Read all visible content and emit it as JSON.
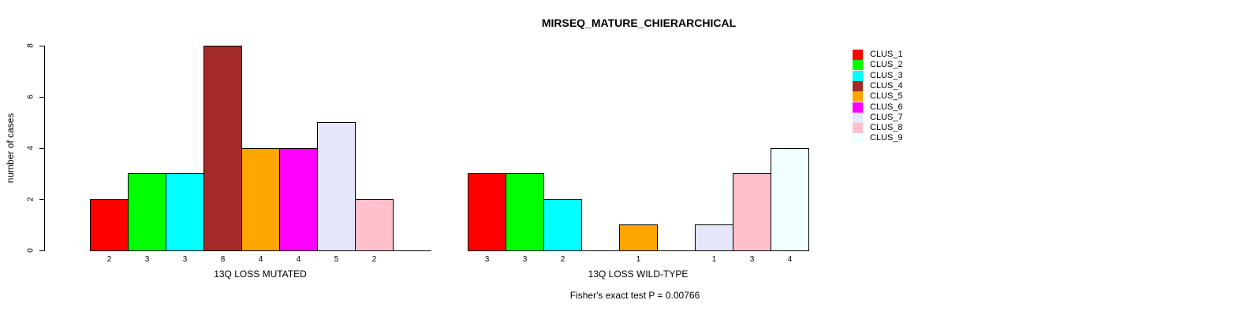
{
  "title": "MIRSEQ_MATURE_CHIERARCHICAL",
  "ylabel": "number of cases",
  "footer": "Fisher's exact test P = 0.00766",
  "legend": {
    "position": "right",
    "entries": [
      {
        "label": "CLUS_1",
        "color": "#FF0000"
      },
      {
        "label": "CLUS_2",
        "color": "#00FF00"
      },
      {
        "label": "CLUS_3",
        "color": "#00FFFF"
      },
      {
        "label": "CLUS_4",
        "color": "#A52A2A"
      },
      {
        "label": "CLUS_5",
        "color": "#FFA500"
      },
      {
        "label": "CLUS_6",
        "color": "#FF00FF"
      },
      {
        "label": "CLUS_7",
        "color": "#E6E6FA"
      },
      {
        "label": "CLUS_8",
        "color": "#FFC0CB"
      },
      {
        "label": "CLUS_9",
        "color": "#F0FFFF"
      }
    ]
  },
  "chart_data": [
    {
      "type": "bar",
      "title": "MIRSEQ_MATURE_CHIERARCHICAL",
      "xlabel": "13Q LOSS MUTATED",
      "ylabel": "number of cases",
      "categories": [
        "CLUS_1",
        "CLUS_2",
        "CLUS_3",
        "CLUS_4",
        "CLUS_5",
        "CLUS_6",
        "CLUS_7",
        "CLUS_8",
        "CLUS_9"
      ],
      "values": [
        2,
        3,
        3,
        8,
        4,
        4,
        5,
        2,
        0
      ],
      "bar_labels": [
        "2",
        "3",
        "3",
        "8",
        "4",
        "4",
        "5",
        "2",
        ""
      ],
      "colors": [
        "#FF0000",
        "#00FF00",
        "#00FFFF",
        "#A52A2A",
        "#FFA500",
        "#FF00FF",
        "#E6E6FA",
        "#FFC0CB",
        "#F0FFFF"
      ],
      "ylim": [
        0,
        8
      ],
      "yticks": [
        0,
        2,
        4,
        6,
        8
      ],
      "grid": false,
      "show_yaxis": true
    },
    {
      "type": "bar",
      "title": "",
      "xlabel": "13Q LOSS WILD-TYPE",
      "ylabel": "",
      "categories": [
        "CLUS_1",
        "CLUS_2",
        "CLUS_3",
        "CLUS_4",
        "CLUS_5",
        "CLUS_6",
        "CLUS_7",
        "CLUS_8",
        "CLUS_9"
      ],
      "values": [
        3,
        3,
        2,
        0,
        1,
        0,
        1,
        3,
        4
      ],
      "bar_labels": [
        "3",
        "3",
        "2",
        "",
        "1",
        "",
        "1",
        "3",
        "4"
      ],
      "colors": [
        "#FF0000",
        "#00FF00",
        "#00FFFF",
        "#A52A2A",
        "#FFA500",
        "#FF00FF",
        "#E6E6FA",
        "#FFC0CB",
        "#F0FFFF"
      ],
      "ylim": [
        0,
        8
      ],
      "yticks": [
        0,
        2,
        4,
        6,
        8
      ],
      "grid": false,
      "show_yaxis": false
    }
  ]
}
